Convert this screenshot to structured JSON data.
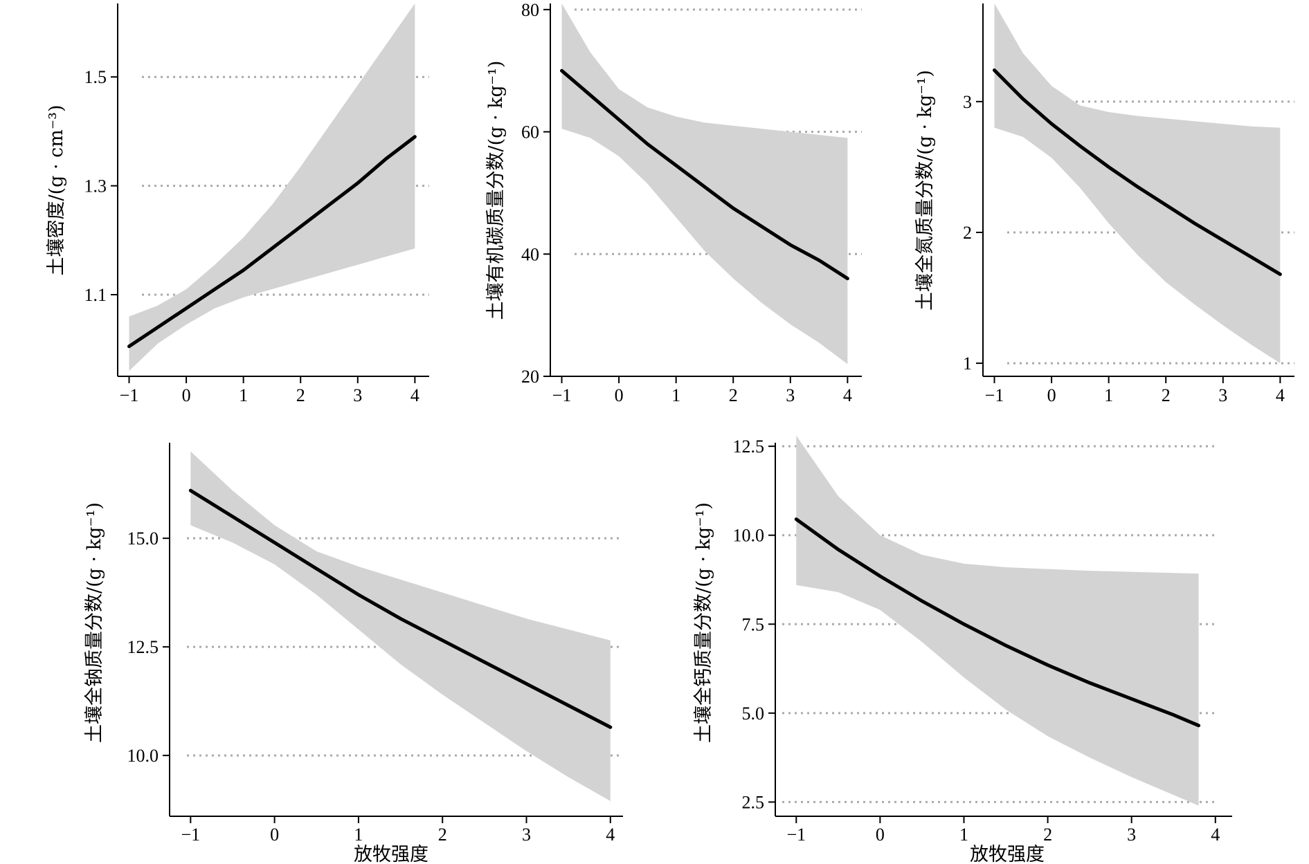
{
  "chart_data": [
    {
      "type": "line",
      "ylabel": "土壤密度/(g · cm⁻³)",
      "xlabel": "",
      "xlim": [
        -1.2,
        4.25
      ],
      "ylim": [
        0.95,
        1.635
      ],
      "xticks": [
        "−1",
        "0",
        "1",
        "2",
        "3",
        "4"
      ],
      "yticks": [
        "1.1",
        "1.3",
        "1.5"
      ],
      "gridlines": [
        1.1,
        1.3,
        1.5
      ],
      "series": [
        {
          "x": [
            -1,
            -0.5,
            0,
            0.5,
            1,
            1.5,
            2,
            2.5,
            3,
            3.5,
            4
          ],
          "y": [
            1.005,
            1.04,
            1.075,
            1.11,
            1.145,
            1.185,
            1.225,
            1.265,
            1.305,
            1.35,
            1.39
          ],
          "lower": [
            0.96,
            1.01,
            1.045,
            1.075,
            1.095,
            1.11,
            1.125,
            1.14,
            1.155,
            1.17,
            1.185
          ],
          "upper": [
            1.06,
            1.08,
            1.11,
            1.155,
            1.205,
            1.265,
            1.335,
            1.41,
            1.485,
            1.56,
            1.635
          ]
        }
      ]
    },
    {
      "type": "line",
      "ylabel": "土壤有机碳质量分数/(g · kg⁻¹)",
      "xlabel": "",
      "xlim": [
        -1.2,
        4.25
      ],
      "ylim": [
        20,
        81
      ],
      "xticks": [
        "−1",
        "0",
        "1",
        "2",
        "3",
        "4"
      ],
      "yticks": [
        "20",
        "40",
        "60",
        "80"
      ],
      "gridlines": [
        40,
        60,
        80
      ],
      "series": [
        {
          "x": [
            -1,
            -0.5,
            0,
            0.5,
            1,
            1.5,
            2,
            2.5,
            3,
            3.5,
            4
          ],
          "y": [
            70,
            66,
            62,
            58,
            54.5,
            51,
            47.5,
            44.5,
            41.5,
            39,
            36
          ],
          "lower": [
            60.5,
            59,
            56,
            51.5,
            46,
            40.5,
            36,
            32,
            28.5,
            25.5,
            22
          ],
          "upper": [
            81,
            73,
            67,
            64,
            62.5,
            61.5,
            61,
            60.5,
            60,
            59.5,
            59
          ]
        }
      ]
    },
    {
      "type": "line",
      "ylabel": "土壤全氮质量分数/(g · kg⁻¹)",
      "xlabel": "",
      "xlim": [
        -1.2,
        4.25
      ],
      "ylim": [
        0.9,
        3.75
      ],
      "xticks": [
        "−1",
        "0",
        "1",
        "2",
        "3",
        "4"
      ],
      "yticks": [
        "1",
        "2",
        "3"
      ],
      "gridlines": [
        1,
        2,
        3
      ],
      "series": [
        {
          "x": [
            -1,
            -0.5,
            0,
            0.5,
            1,
            1.5,
            2,
            2.5,
            3,
            3.5,
            4
          ],
          "y": [
            3.24,
            3.02,
            2.83,
            2.66,
            2.5,
            2.35,
            2.21,
            2.07,
            1.94,
            1.81,
            1.68
          ],
          "lower": [
            2.8,
            2.73,
            2.57,
            2.34,
            2.07,
            1.83,
            1.62,
            1.45,
            1.29,
            1.14,
            1.0
          ],
          "upper": [
            3.75,
            3.37,
            3.12,
            2.97,
            2.92,
            2.89,
            2.87,
            2.85,
            2.83,
            2.81,
            2.8
          ]
        }
      ]
    },
    {
      "type": "line",
      "ylabel": "土壤全钠质量分数/(g · kg⁻¹)",
      "xlabel": "放牧强度",
      "xlim": [
        -1.25,
        4.15
      ],
      "ylim": [
        8.6,
        17.2
      ],
      "xticks": [
        "−1",
        "0",
        "1",
        "2",
        "3",
        "4"
      ],
      "yticks": [
        "10.0",
        "12.5",
        "15.0"
      ],
      "gridlines": [
        10.0,
        12.5,
        15.0
      ],
      "series": [
        {
          "x": [
            -1,
            -0.5,
            0,
            0.5,
            1,
            1.5,
            2,
            2.5,
            3,
            3.5,
            4
          ],
          "y": [
            16.1,
            15.5,
            14.9,
            14.3,
            13.7,
            13.15,
            12.65,
            12.15,
            11.65,
            11.15,
            10.65
          ],
          "lower": [
            15.3,
            14.9,
            14.4,
            13.7,
            12.9,
            12.1,
            11.4,
            10.75,
            10.1,
            9.5,
            8.95
          ],
          "upper": [
            17.0,
            16.1,
            15.3,
            14.7,
            14.35,
            14.05,
            13.75,
            13.45,
            13.15,
            12.9,
            12.65
          ]
        }
      ]
    },
    {
      "type": "line",
      "ylabel": "土壤全钙质量分数/(g · kg⁻¹)",
      "xlabel": "放牧强度",
      "xlim": [
        -1.25,
        4.2
      ],
      "ylim": [
        2.1,
        12.6
      ],
      "xticks": [
        "−1",
        "0",
        "1",
        "2",
        "3",
        "4"
      ],
      "yticks": [
        "2.5",
        "5.0",
        "7.5",
        "10.0",
        "12.5"
      ],
      "gridlines": [
        2.5,
        5.0,
        7.5,
        10.0,
        12.5
      ],
      "series": [
        {
          "x": [
            -1,
            -0.5,
            0,
            0.5,
            1,
            1.5,
            2,
            2.5,
            3,
            3.5,
            3.8
          ],
          "y": [
            10.45,
            9.6,
            8.85,
            8.15,
            7.5,
            6.9,
            6.35,
            5.85,
            5.4,
            4.95,
            4.65
          ],
          "lower": [
            8.6,
            8.4,
            7.9,
            7.0,
            6.0,
            5.1,
            4.35,
            3.75,
            3.2,
            2.7,
            2.4
          ],
          "upper": [
            12.8,
            11.1,
            10.0,
            9.45,
            9.2,
            9.1,
            9.05,
            9.0,
            8.97,
            8.94,
            8.92
          ]
        }
      ]
    }
  ]
}
